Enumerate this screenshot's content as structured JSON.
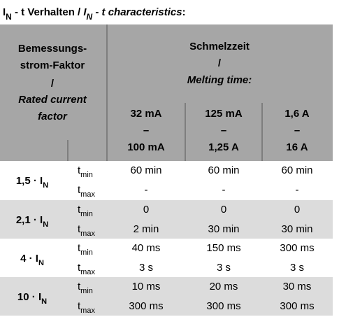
{
  "title": [
    {
      "text": "I"
    },
    {
      "text": "N",
      "sub": true
    },
    {
      "text": " - t Verhalten / "
    },
    {
      "text": "I",
      "italic": true
    },
    {
      "text": "N",
      "sub": true,
      "italic": true
    },
    {
      "text": " - t characteristics",
      "italic": true
    },
    {
      "text": ":"
    }
  ],
  "header": {
    "left": {
      "de": [
        "Bemessungs-",
        "strom-Faktor"
      ],
      "sep": "/",
      "en": [
        "Rated current",
        "factor"
      ]
    },
    "right": {
      "de": "Schmelzzeit",
      "sep": "/",
      "en": "Melting time:"
    },
    "columns": [
      {
        "from": "32 mA",
        "sep": "–",
        "to": "100 mA"
      },
      {
        "from": "125 mA",
        "sep": "–",
        "to": "1,25 A"
      },
      {
        "from": "1,6 A",
        "sep": "–",
        "to": "16 A"
      }
    ]
  },
  "rows": [
    {
      "factor": "1,5 · ",
      "symbol": "I",
      "symbol_sub": "N",
      "times": [
        {
          "label": "t",
          "sub": "min",
          "values": [
            "60 min",
            "60 min",
            "60 min"
          ]
        },
        {
          "label": "t",
          "sub": "max",
          "values": [
            "-",
            "-",
            "-"
          ]
        }
      ]
    },
    {
      "factor": "2,1 · ",
      "symbol": "I",
      "symbol_sub": "N",
      "times": [
        {
          "label": "t",
          "sub": "min",
          "values": [
            "0",
            "0",
            "0"
          ]
        },
        {
          "label": "t",
          "sub": "max",
          "values": [
            "2 min",
            "30 min",
            "30 min"
          ]
        }
      ]
    },
    {
      "factor": "4 · ",
      "symbol": "I",
      "symbol_sub": "N",
      "times": [
        {
          "label": "t",
          "sub": "min",
          "values": [
            "40 ms",
            "150 ms",
            "300 ms"
          ]
        },
        {
          "label": "t",
          "sub": "max",
          "values": [
            "3 s",
            "3 s",
            "3 s"
          ]
        }
      ]
    },
    {
      "factor": "10 · ",
      "symbol": "I",
      "symbol_sub": "N",
      "times": [
        {
          "label": "t",
          "sub": "min",
          "values": [
            "10 ms",
            "20 ms",
            "30 ms"
          ]
        },
        {
          "label": "t",
          "sub": "max",
          "values": [
            "300 ms",
            "300 ms",
            "300 ms"
          ]
        }
      ]
    }
  ]
}
